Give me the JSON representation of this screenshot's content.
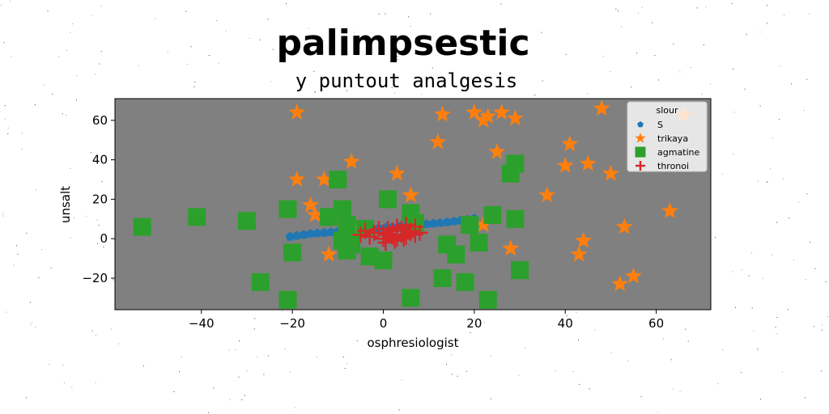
{
  "figure": {
    "suptitle": "palimpsestic"
  },
  "chart_data": {
    "type": "scatter",
    "title": "y puntout analgesis",
    "xlabel": "osphresiologist",
    "ylabel": "unsalt",
    "xlim": [
      -59,
      72
    ],
    "ylim": [
      -36,
      71
    ],
    "xticks": [
      -40,
      -20,
      0,
      20,
      40,
      60
    ],
    "yticks": [
      -20,
      0,
      20,
      40,
      60
    ],
    "grid": false,
    "background": "#808080",
    "legend": {
      "title": "slour",
      "placement": "top-right"
    },
    "series": [
      {
        "name": "S",
        "marker": "pentagon",
        "color": "#1f77b4",
        "x": [
          -20.5,
          -19,
          -17.5,
          -16,
          -14.5,
          -13,
          -11.5,
          -10,
          -8.5,
          -7,
          -5.5,
          -4,
          -2.5,
          -1,
          0.5,
          2,
          3.5,
          5,
          6.5,
          8,
          9.5,
          11,
          12.5,
          14,
          15.5,
          17,
          18.5,
          20
        ],
        "y": [
          1,
          1.5,
          2,
          2.5,
          2.8,
          3,
          3.3,
          3.6,
          3.9,
          4.1,
          4.4,
          4.7,
          5,
          5.3,
          5.6,
          5.9,
          6.2,
          6.5,
          6.8,
          7.1,
          7.4,
          7.7,
          8,
          8.4,
          8.8,
          9.2,
          9.7,
          10.2
        ]
      },
      {
        "name": "trikaya",
        "marker": "star",
        "color": "#ff7f0e",
        "x": [
          -19,
          -19,
          -16,
          -15,
          -13,
          -12,
          -7,
          -6,
          3,
          6,
          12,
          13,
          20,
          22,
          23,
          25,
          26,
          29,
          28,
          36,
          40,
          41,
          45,
          48,
          50,
          52,
          53,
          55,
          63,
          66,
          44,
          43,
          22
        ],
        "y": [
          64,
          30,
          17,
          12,
          30,
          -8,
          39,
          3,
          33,
          22,
          49,
          63,
          64,
          60,
          62,
          44,
          64,
          61,
          -5,
          22,
          37,
          48,
          38,
          66,
          33,
          -23,
          6,
          -19,
          14,
          63,
          -1,
          -8,
          7
        ]
      },
      {
        "name": "agmatine",
        "marker": "square",
        "color": "#2ca02c",
        "x": [
          -53,
          -41,
          -30,
          -27,
          -21,
          -21,
          -20,
          -12,
          -10,
          -9,
          -9,
          -8,
          -8,
          -7,
          -4,
          -3,
          0,
          1,
          6,
          6,
          7,
          13,
          14,
          16,
          18,
          19,
          21,
          23,
          24,
          28,
          29,
          29,
          30
        ],
        "y": [
          6,
          11,
          9,
          -22,
          15,
          -31,
          -7,
          11,
          30,
          15,
          -1,
          -6,
          7,
          -3,
          5,
          -9,
          -11,
          20,
          13,
          -30,
          8,
          -20,
          -3,
          -8,
          -22,
          7,
          -2,
          -31,
          12,
          33,
          10,
          38,
          -16
        ]
      },
      {
        "name": "thronoi",
        "marker": "plus",
        "color": "#d62728",
        "x": [
          -5,
          -4,
          -3,
          -2,
          -1,
          0,
          0,
          1,
          1,
          2,
          2,
          3,
          3,
          4,
          4,
          5,
          5,
          6,
          6,
          7,
          7,
          8,
          0.5,
          2.5,
          4.5
        ],
        "y": [
          2,
          4,
          1,
          3,
          5,
          0,
          3,
          2,
          5,
          1,
          4,
          0,
          6,
          2,
          5,
          1,
          7,
          3,
          4,
          2,
          6,
          3,
          -2,
          -1,
          0
        ]
      }
    ]
  }
}
